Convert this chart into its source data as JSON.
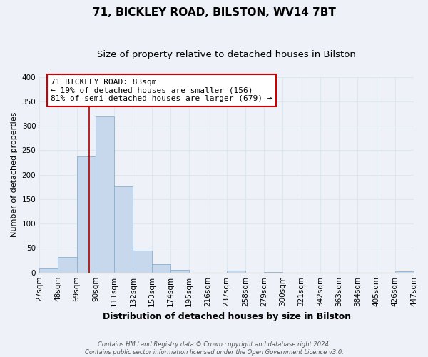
{
  "title": "71, BICKLEY ROAD, BILSTON, WV14 7BT",
  "subtitle": "Size of property relative to detached houses in Bilston",
  "xlabel": "Distribution of detached houses by size in Bilston",
  "ylabel": "Number of detached properties",
  "bar_color": "#c8d8ec",
  "bar_edge_color": "#8ab0d0",
  "bins": [
    27,
    48,
    69,
    90,
    111,
    132,
    153,
    174,
    195,
    216,
    237,
    258,
    279,
    300,
    321,
    342,
    363,
    384,
    405,
    426,
    447
  ],
  "values": [
    8,
    32,
    238,
    320,
    176,
    45,
    17,
    5,
    0,
    0,
    4,
    0,
    1,
    0,
    0,
    0,
    0,
    0,
    0,
    2
  ],
  "tick_labels": [
    "27sqm",
    "48sqm",
    "69sqm",
    "90sqm",
    "111sqm",
    "132sqm",
    "153sqm",
    "174sqm",
    "195sqm",
    "216sqm",
    "237sqm",
    "258sqm",
    "279sqm",
    "300sqm",
    "321sqm",
    "342sqm",
    "363sqm",
    "384sqm",
    "405sqm",
    "426sqm",
    "447sqm"
  ],
  "ylim": [
    0,
    400
  ],
  "property_line_x": 83,
  "annotation_title": "71 BICKLEY ROAD: 83sqm",
  "annotation_line1": "← 19% of detached houses are smaller (156)",
  "annotation_line2": "81% of semi-detached houses are larger (679) →",
  "annotation_box_color": "#ffffff",
  "annotation_box_edge": "#cc0000",
  "vline_color": "#aa0000",
  "footer1": "Contains HM Land Registry data © Crown copyright and database right 2024.",
  "footer2": "Contains public sector information licensed under the Open Government Licence v3.0.",
  "background_color": "#eef2f8",
  "grid_color": "#dce8f0",
  "title_fontsize": 11,
  "subtitle_fontsize": 9.5,
  "xlabel_fontsize": 9,
  "ylabel_fontsize": 8,
  "tick_fontsize": 7.5,
  "annotation_fontsize": 8,
  "footer_fontsize": 6
}
